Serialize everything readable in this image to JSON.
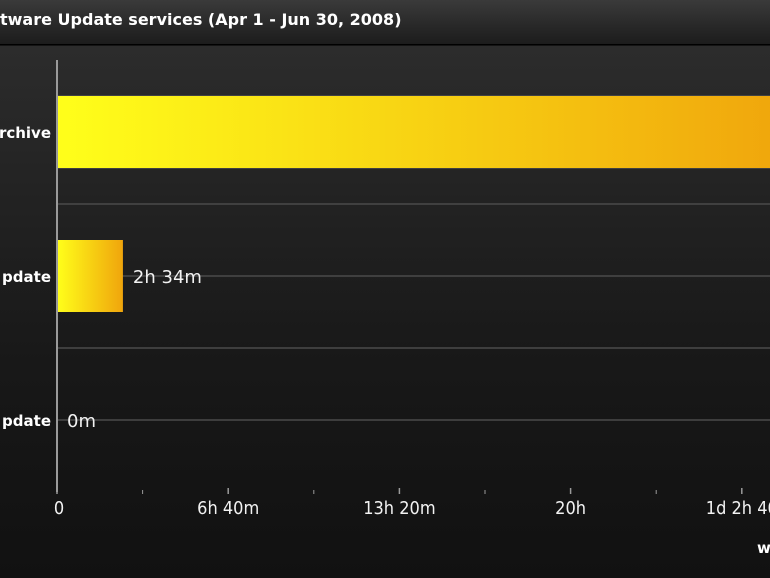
{
  "header": {
    "title": "tware Update services (Apr 1 - Jun 30, 2008)"
  },
  "footer": {
    "partial_text": "w"
  },
  "colors": {
    "bar_start": "#ffff1a",
    "bar_end": "#f0a50c",
    "background": "#141414",
    "gridline": "#4a4a4a",
    "axis": "#9a9a9a",
    "text": "#ffffff"
  },
  "chart_data": {
    "type": "bar",
    "orientation": "horizontal",
    "title": "tware Update services (Apr 1 - Jun 30, 2008)",
    "categories": [
      "rchive",
      "pdate",
      "pdate"
    ],
    "values_minutes": [
      1710,
      154,
      0
    ],
    "data_labels": [
      "",
      "2h 34m",
      "0m"
    ],
    "x_ticks": [
      {
        "value": 0,
        "label": "0"
      },
      {
        "value": 400,
        "label": "6h 40m"
      },
      {
        "value": 800,
        "label": "13h 20m"
      },
      {
        "value": 1200,
        "label": "20h"
      },
      {
        "value": 1600,
        "label": "1d 2h 40"
      }
    ],
    "x_unit": "minutes",
    "xlim": [
      0,
      1800
    ],
    "grid": true,
    "legend": "none"
  }
}
